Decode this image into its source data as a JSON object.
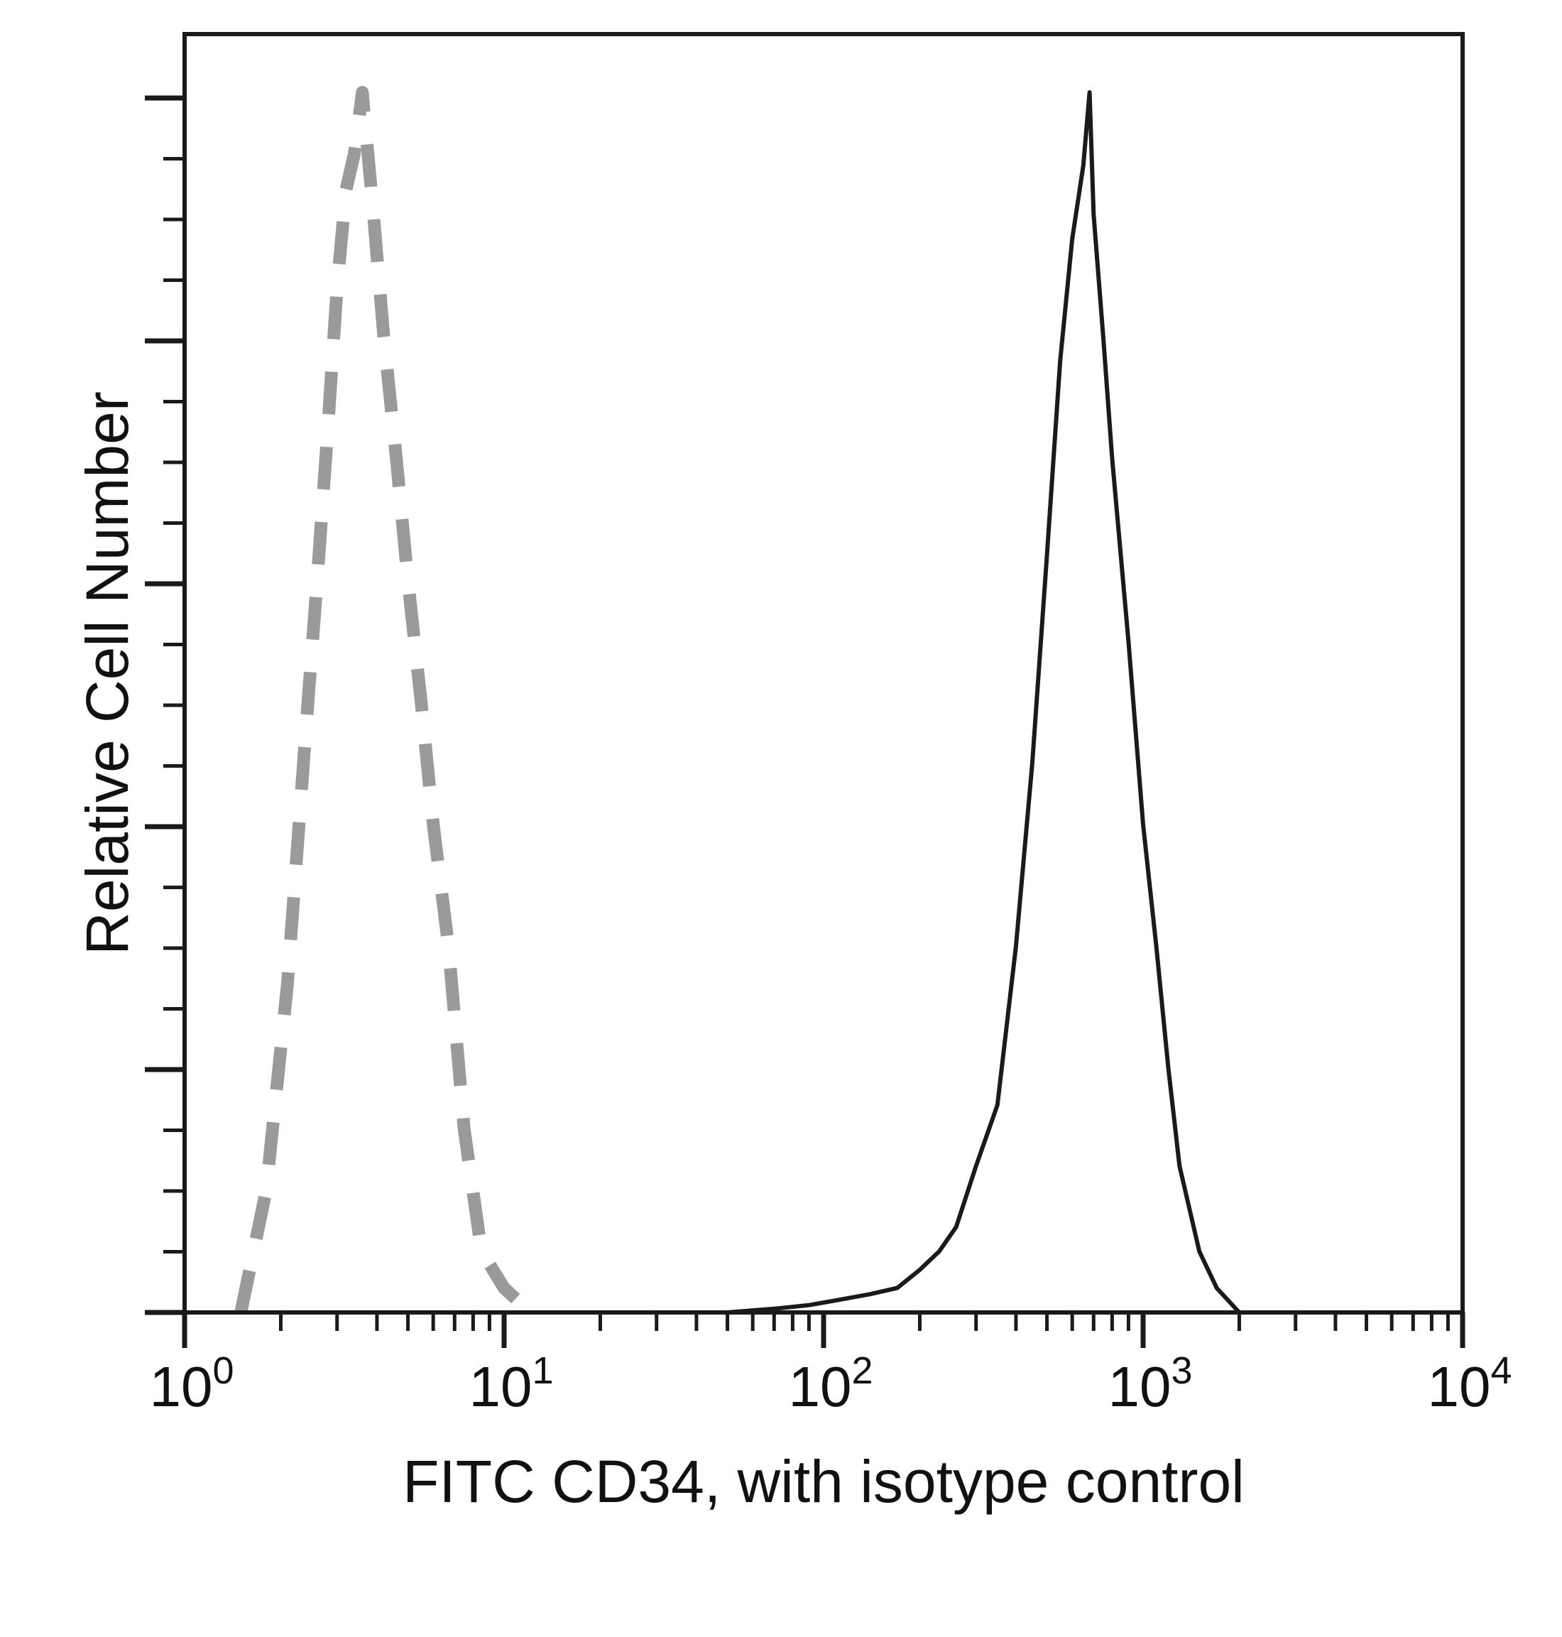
{
  "chart_data": {
    "type": "line",
    "title": "",
    "xlabel": "FITC CD34, with isotype control",
    "ylabel": "Relative Cell Number",
    "x_scale": "log",
    "xlim": [
      1,
      10000
    ],
    "ylim": [
      0,
      100
    ],
    "x_ticks": [
      {
        "base": "10",
        "exp": "0",
        "value": 1
      },
      {
        "base": "10",
        "exp": "1",
        "value": 10
      },
      {
        "base": "10",
        "exp": "2",
        "value": 100
      },
      {
        "base": "10",
        "exp": "3",
        "value": 1000
      },
      {
        "base": "10",
        "exp": "4",
        "value": 10000
      }
    ],
    "grid": false,
    "legend": "none",
    "series": [
      {
        "style": "dashed",
        "color": "#9a9a9a",
        "x": [
          1.5,
          1.8,
          2.1,
          2.4,
          2.6,
          2.8,
          3.0,
          3.2,
          3.4,
          3.6,
          3.9,
          4.2,
          4.6,
          5.0,
          5.5,
          6.0,
          6.7,
          7.5,
          8.5,
          10,
          11,
          12,
          13
        ],
        "y": [
          0,
          10,
          27,
          48,
          60,
          72,
          84,
          92,
          95,
          100,
          90,
          80,
          70,
          60,
          50,
          40,
          30,
          15,
          5,
          2,
          1,
          0,
          0
        ]
      },
      {
        "style": "solid",
        "color": "#1a1a1a",
        "x": [
          1,
          50,
          70,
          90,
          110,
          140,
          170,
          200,
          230,
          260,
          300,
          350,
          400,
          450,
          500,
          550,
          600,
          650,
          680,
          700,
          750,
          800,
          900,
          1000,
          1100,
          1200,
          1300,
          1500,
          1700,
          2000,
          10000
        ],
        "y": [
          0,
          0,
          0.3,
          0.6,
          1,
          1.5,
          2,
          3.5,
          5,
          7,
          12,
          17,
          30,
          45,
          62,
          78,
          88,
          94,
          100,
          90,
          80,
          70,
          55,
          40,
          30,
          20,
          12,
          5,
          2,
          0,
          0
        ]
      }
    ]
  }
}
